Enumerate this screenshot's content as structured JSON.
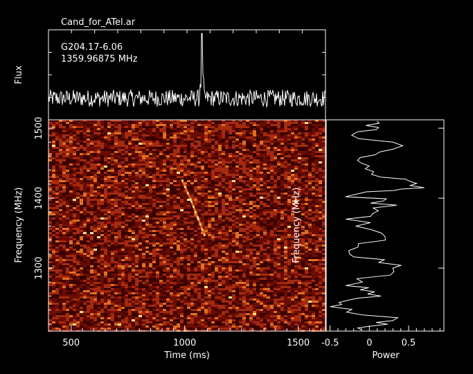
{
  "figure": {
    "title": "Cand_for_ATel.ar",
    "annotation_source": "G204.17-6.06",
    "annotation_frequency": "1359.96875 MHz"
  },
  "chart_data": [
    {
      "type": "line",
      "panel": "flux-profile",
      "ylabel": "Flux",
      "xlim": [
        400,
        1620
      ],
      "peak": {
        "x": 1075,
        "relative_height": 1.0
      },
      "noise_level": 0.22,
      "grid": false
    },
    {
      "type": "heatmap",
      "panel": "dynamic-spectrum",
      "xlabel": "Time (ms)",
      "ylabel": "Frequency (MHz)",
      "xlim": [
        400,
        1620
      ],
      "ylim": [
        1210,
        1512
      ],
      "x_ticks": [
        500,
        1000,
        1500
      ],
      "x_tick_labels": [
        "500",
        "1000",
        "1500"
      ],
      "y_ticks": [
        1300,
        1400,
        1500
      ],
      "y_tick_labels": [
        "1300",
        "1400",
        "1500"
      ],
      "colormap": [
        "#3a0000",
        "#6e0e02",
        "#a42a10",
        "#e07020",
        "#ffe08a"
      ],
      "signal_track": [
        {
          "time": 990,
          "frequency": 1425
        },
        {
          "time": 1030,
          "frequency": 1395
        },
        {
          "time": 1060,
          "frequency": 1370
        },
        {
          "time": 1090,
          "frequency": 1345
        }
      ],
      "grid": false
    },
    {
      "type": "line",
      "panel": "frequency-spectrum",
      "xlabel": "Power",
      "ylabel": "Frequency (MHz)",
      "xlim": [
        -0.55,
        0.95
      ],
      "ylim": [
        1210,
        1512
      ],
      "x_ticks": [
        -0.5,
        0,
        0.5
      ],
      "x_tick_labels": [
        "-0.5",
        "0",
        "0.5"
      ],
      "y_ticks": [
        1300,
        1400,
        1500
      ],
      "y_tick_labels": [
        "1300",
        "1400",
        "1500"
      ],
      "series": [
        {
          "values": [
            {
              "freq": 1510,
              "power": 0.1
            },
            {
              "freq": 1495,
              "power": -0.15
            },
            {
              "freq": 1470,
              "power": 0.3
            },
            {
              "freq": 1450,
              "power": -0.1
            },
            {
              "freq": 1430,
              "power": 0.15
            },
            {
              "freq": 1415,
              "power": 0.7
            },
            {
              "freq": 1405,
              "power": -0.2
            },
            {
              "freq": 1390,
              "power": 0.35
            },
            {
              "freq": 1370,
              "power": -0.3
            },
            {
              "freq": 1345,
              "power": 0.2
            },
            {
              "freq": 1320,
              "power": -0.25
            },
            {
              "freq": 1300,
              "power": 0.3
            },
            {
              "freq": 1275,
              "power": -0.3
            },
            {
              "freq": 1260,
              "power": 0.15
            },
            {
              "freq": 1245,
              "power": -0.5
            },
            {
              "freq": 1225,
              "power": 0.3
            },
            {
              "freq": 1212,
              "power": -0.1
            }
          ]
        }
      ],
      "grid": false
    }
  ]
}
